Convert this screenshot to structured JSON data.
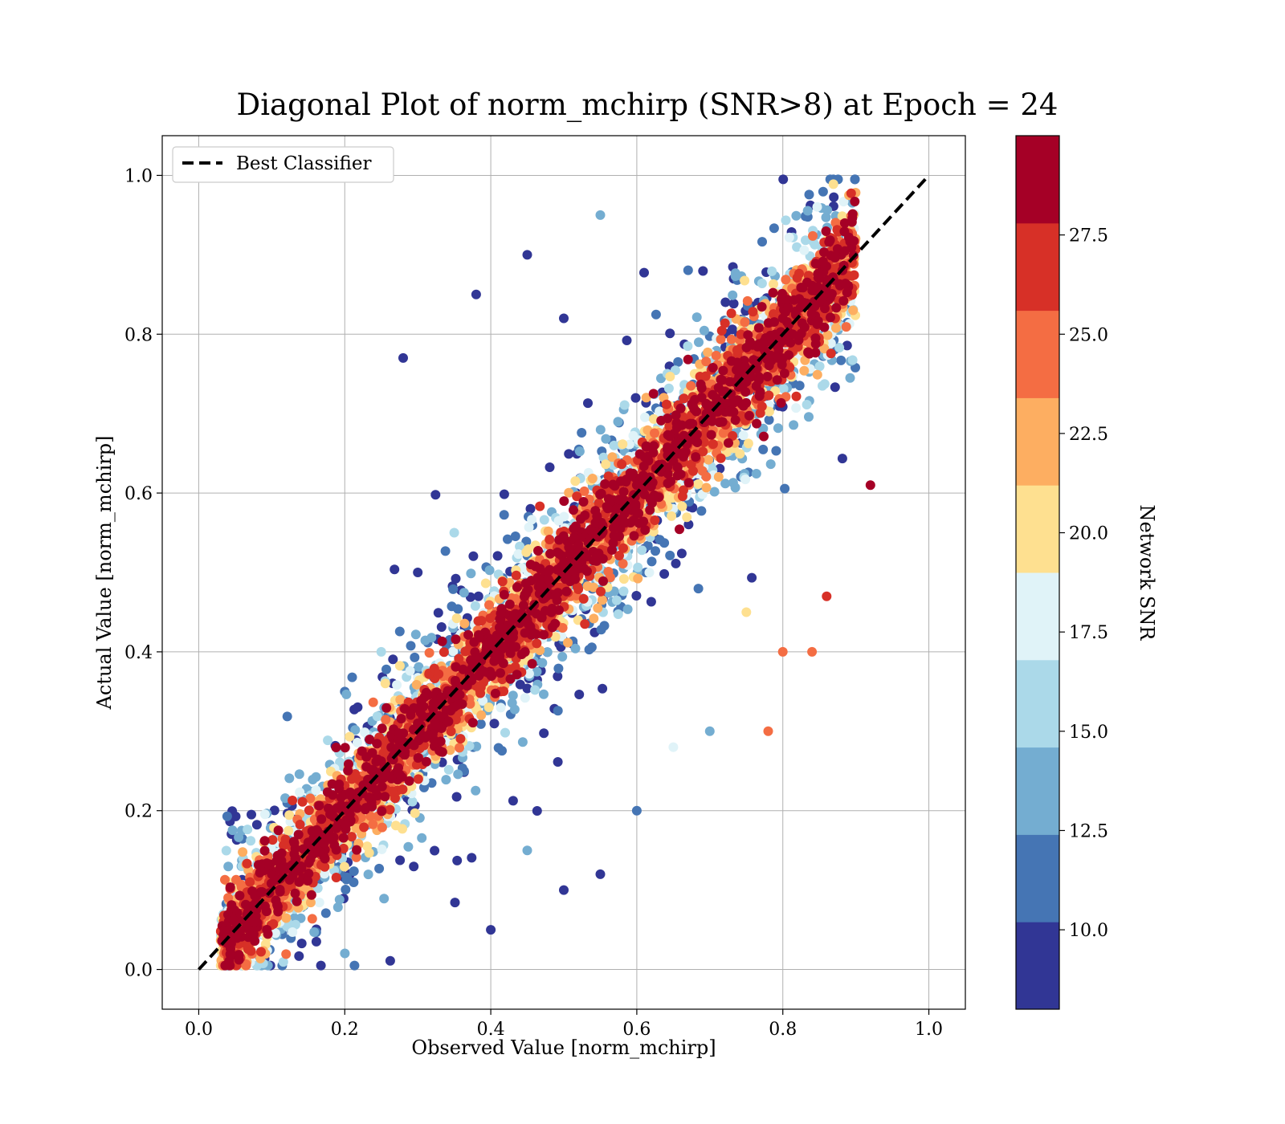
{
  "chart_data": {
    "type": "scatter",
    "title": "Diagonal Plot of norm_mchirp (SNR>8) at Epoch = 24",
    "xlabel": "Observed Value [norm_mchirp]",
    "ylabel": "Actual Value [norm_mchirp]",
    "xlim": [
      -0.05,
      1.05
    ],
    "ylim": [
      -0.05,
      1.05
    ],
    "xticks": [
      "0.0",
      "0.2",
      "0.4",
      "0.6",
      "0.8",
      "1.0"
    ],
    "yticks": [
      "0.0",
      "0.2",
      "0.4",
      "0.6",
      "0.8",
      "1.0"
    ],
    "grid": true,
    "legend": {
      "placement": "top-left",
      "entries": [
        {
          "label": "Best Classifier",
          "style": "dashed",
          "color": "#000000"
        }
      ]
    },
    "reference_line": {
      "x": [
        0.0,
        1.0
      ],
      "y": [
        0.0,
        1.0
      ]
    },
    "colorbar": {
      "label": "Network SNR",
      "range": [
        8,
        30
      ],
      "ticks": [
        "10.0",
        "12.5",
        "15.0",
        "17.5",
        "20.0",
        "22.5",
        "25.0",
        "27.5"
      ],
      "colors": [
        "#313695",
        "#4575b4",
        "#74add1",
        "#abd9e9",
        "#e0f3f8",
        "#fee090",
        "#fdae61",
        "#f46d43",
        "#d73027",
        "#a50026"
      ]
    },
    "points_sample": [
      [
        0.05,
        0.04,
        29
      ],
      [
        0.1,
        0.12,
        28
      ],
      [
        0.15,
        0.16,
        29
      ],
      [
        0.2,
        0.22,
        29
      ],
      [
        0.25,
        0.24,
        28
      ],
      [
        0.3,
        0.31,
        29
      ],
      [
        0.35,
        0.35,
        29
      ],
      [
        0.4,
        0.41,
        29
      ],
      [
        0.45,
        0.44,
        29
      ],
      [
        0.5,
        0.51,
        29
      ],
      [
        0.55,
        0.55,
        29
      ],
      [
        0.6,
        0.61,
        29
      ],
      [
        0.65,
        0.64,
        29
      ],
      [
        0.7,
        0.71,
        29
      ],
      [
        0.75,
        0.74,
        29
      ],
      [
        0.8,
        0.82,
        29
      ],
      [
        0.85,
        0.84,
        29
      ],
      [
        0.88,
        0.9,
        28
      ],
      [
        0.2,
        0.35,
        11
      ],
      [
        0.3,
        0.5,
        10
      ],
      [
        0.38,
        0.85,
        9
      ],
      [
        0.45,
        0.9,
        9
      ],
      [
        0.55,
        0.95,
        13
      ],
      [
        0.28,
        0.77,
        9
      ],
      [
        0.5,
        0.82,
        10
      ],
      [
        0.25,
        0.4,
        15
      ],
      [
        0.35,
        0.55,
        16
      ],
      [
        0.4,
        0.05,
        9
      ],
      [
        0.5,
        0.1,
        10
      ],
      [
        0.6,
        0.2,
        11
      ],
      [
        0.7,
        0.3,
        14
      ],
      [
        0.8,
        0.4,
        24
      ],
      [
        0.45,
        0.15,
        13
      ],
      [
        0.55,
        0.12,
        9
      ],
      [
        0.65,
        0.28,
        17
      ],
      [
        0.75,
        0.45,
        20
      ],
      [
        0.92,
        0.61,
        29
      ],
      [
        0.84,
        0.4,
        25
      ],
      [
        0.86,
        0.47,
        26
      ],
      [
        0.78,
        0.3,
        24
      ]
    ]
  }
}
